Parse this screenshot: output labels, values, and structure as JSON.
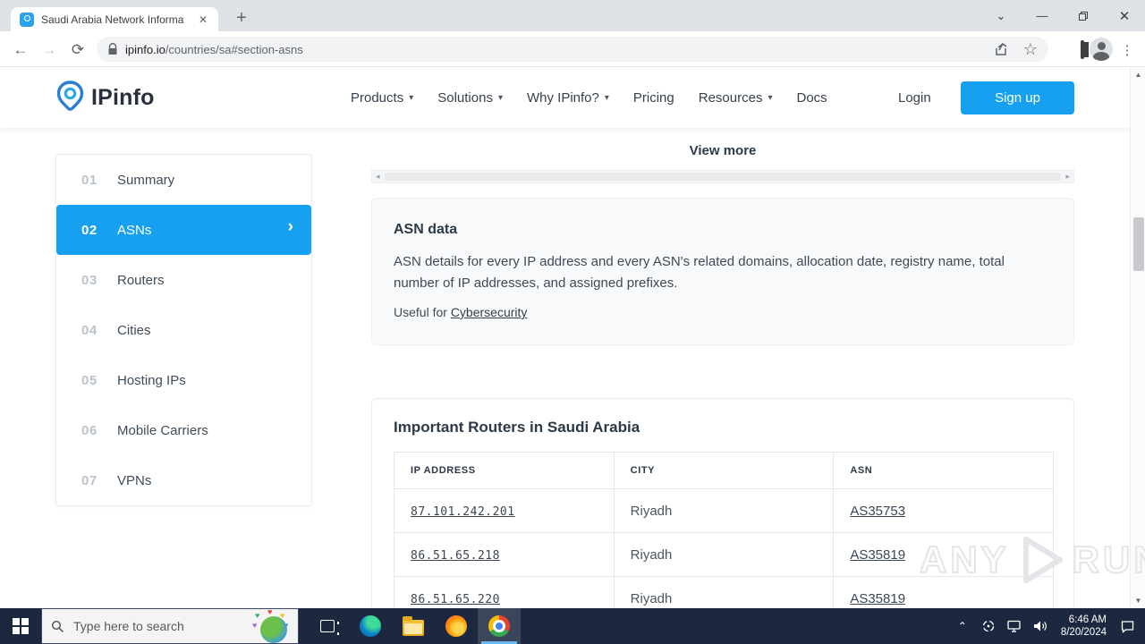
{
  "colors": {
    "accent": "#18a0f0",
    "taskbar": "#1c2840",
    "chrome_frame": "#dee1e6",
    "card_bg": "#f7f9fa"
  },
  "browser": {
    "tab_title": "Saudi Arabia Network Informati",
    "url_host": "ipinfo.io",
    "url_path": "/countries/sa#section-asns",
    "icons": {
      "close": "✕",
      "new_tab": "+",
      "tab_search": "⌄",
      "minimize": "—",
      "back": "←",
      "forward": "→",
      "reload": "⟳",
      "star": "☆",
      "kebab": "⋮"
    }
  },
  "site_header": {
    "logo_text": "IPinfo",
    "nav": [
      {
        "label": "Products",
        "dropdown": true
      },
      {
        "label": "Solutions",
        "dropdown": true
      },
      {
        "label": "Why IPinfo?",
        "dropdown": true
      },
      {
        "label": "Pricing",
        "dropdown": false
      },
      {
        "label": "Resources",
        "dropdown": true
      },
      {
        "label": "Docs",
        "dropdown": false
      }
    ],
    "nav_caret": "▾",
    "login_label": "Login",
    "signup_label": "Sign up"
  },
  "sidebar": {
    "chevron": "›",
    "items": [
      {
        "num": "01",
        "label": "Summary",
        "active": false
      },
      {
        "num": "02",
        "label": "ASNs",
        "active": true
      },
      {
        "num": "03",
        "label": "Routers",
        "active": false
      },
      {
        "num": "04",
        "label": "Cities",
        "active": false
      },
      {
        "num": "05",
        "label": "Hosting IPs",
        "active": false
      },
      {
        "num": "06",
        "label": "Mobile Carriers",
        "active": false
      },
      {
        "num": "07",
        "label": "VPNs",
        "active": false
      }
    ]
  },
  "main": {
    "view_more": "View more",
    "hscroll": {
      "left": "◂",
      "right": "▸"
    },
    "vscroll": {
      "up": "▲",
      "down": "▼"
    },
    "asn_card": {
      "title": "ASN data",
      "description": "ASN details for every IP address and every ASN's related domains, allocation date, registry name, total number of IP addresses, and assigned prefixes.",
      "useful_prefix": "Useful for ",
      "useful_link": "Cybersecurity"
    },
    "routers_card": {
      "title": "Important Routers in Saudi Arabia",
      "table": {
        "headers": [
          "IP ADDRESS",
          "CITY",
          "ASN"
        ],
        "rows": [
          {
            "ip": "87.101.242.201",
            "city": "Riyadh",
            "asn": "AS35753"
          },
          {
            "ip": "86.51.65.218",
            "city": "Riyadh",
            "asn": "AS35819"
          },
          {
            "ip": "86.51.65.220",
            "city": "Riyadh",
            "asn": "AS35819"
          }
        ]
      }
    }
  },
  "watermark": {
    "left": "ANY",
    "right": "RUN"
  },
  "taskbar": {
    "search_placeholder": "Type here to search",
    "time": "6:46 AM",
    "date": "8/20/2024",
    "tray_chevron": "⌃"
  }
}
